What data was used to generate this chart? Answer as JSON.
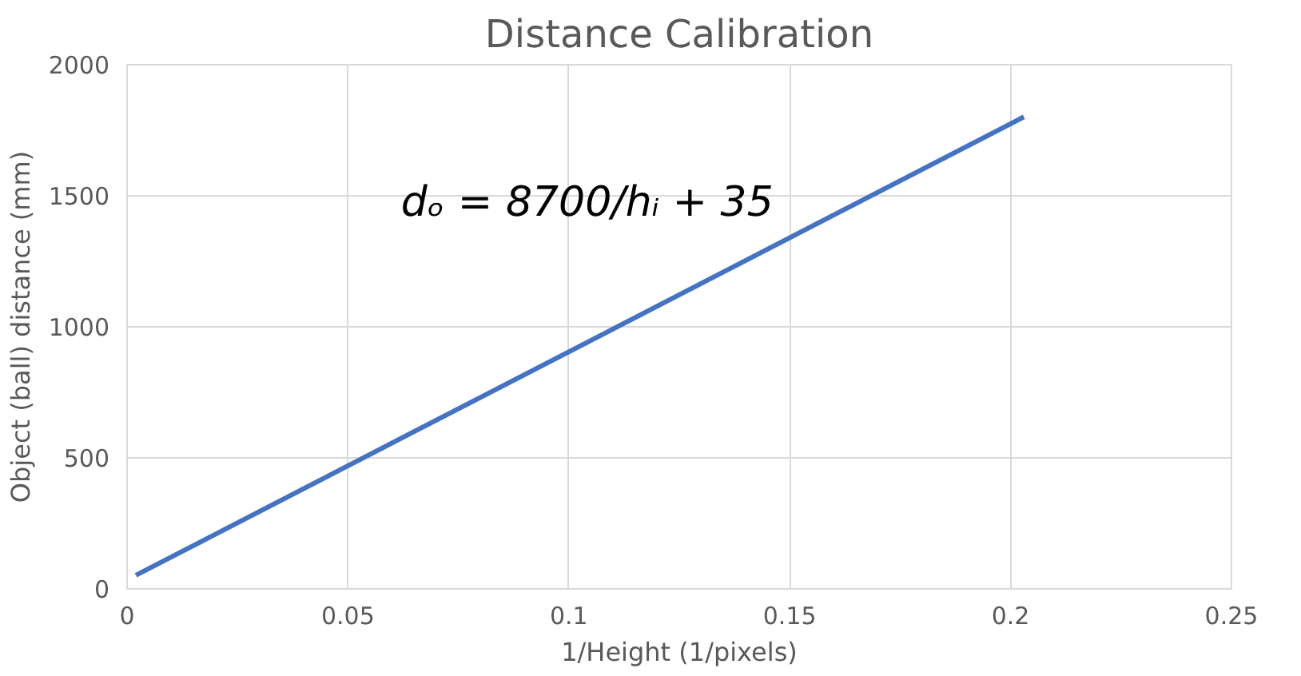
{
  "chart_data": {
    "type": "line",
    "title": "Distance Calibration",
    "xlabel": "1/Height (1/pixels)",
    "ylabel": "Object (ball) distance (mm)",
    "x": [
      0.002,
      0.203
    ],
    "series": [
      {
        "color": "#4472c4",
        "values": [
          52,
          1801
        ]
      }
    ],
    "xlim": [
      0,
      0.25
    ],
    "xticks": [
      0,
      0.05,
      0.1,
      0.15,
      0.2,
      0.25
    ],
    "ylim": [
      0,
      2000
    ],
    "yticks": [
      0,
      500,
      1000,
      1500,
      2000
    ],
    "grid": true,
    "marker": "none",
    "line_style": "solid",
    "annotations": [
      "dₒ = 8700/hᵢ + 35"
    ]
  }
}
